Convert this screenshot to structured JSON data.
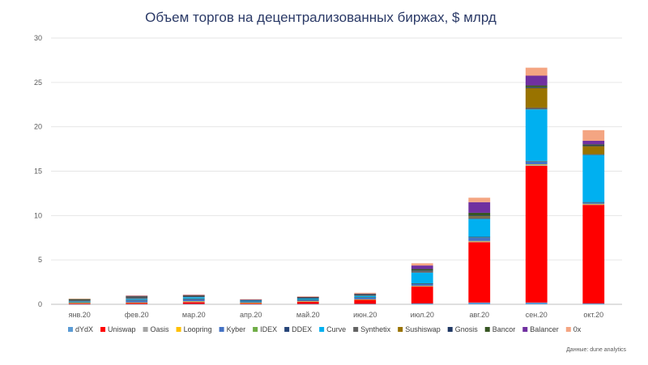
{
  "chart_data": {
    "type": "bar",
    "stacked": true,
    "title": "Объем торгов на децентрализованных биржах, $ млрд",
    "source": "Данные: dune analytics",
    "categories": [
      "янв.20",
      "фев.20",
      "мар.20",
      "апр.20",
      "май.20",
      "июн.20",
      "июл.20",
      "авг.20",
      "сен.20",
      "окт.20"
    ],
    "ylim": [
      0,
      30
    ],
    "yticks": [
      0,
      5,
      10,
      15,
      20,
      25,
      30
    ],
    "grid": true,
    "legend_position": "bottom",
    "series": [
      {
        "name": "dYdX",
        "color": "#5b9bd5",
        "values": [
          0.02,
          0.03,
          0.04,
          0.03,
          0.04,
          0.05,
          0.1,
          0.2,
          0.2,
          0.1
        ]
      },
      {
        "name": "Uniswap",
        "color": "#ff0000",
        "values": [
          0.08,
          0.12,
          0.2,
          0.1,
          0.25,
          0.45,
          1.9,
          6.8,
          15.4,
          11.1
        ]
      },
      {
        "name": "Oasis",
        "color": "#a5a5a5",
        "values": [
          0.05,
          0.05,
          0.08,
          0.04,
          0.05,
          0.05,
          0.05,
          0.1,
          0.15,
          0.1
        ]
      },
      {
        "name": "Loopring",
        "color": "#ffc000",
        "values": [
          0.01,
          0.01,
          0.02,
          0.01,
          0.01,
          0.01,
          0.02,
          0.03,
          0.03,
          0.02
        ]
      },
      {
        "name": "Kyber",
        "color": "#4472c4",
        "values": [
          0.1,
          0.25,
          0.25,
          0.12,
          0.15,
          0.2,
          0.25,
          0.4,
          0.3,
          0.15
        ]
      },
      {
        "name": "IDEX",
        "color": "#70ad47",
        "values": [
          0.02,
          0.03,
          0.03,
          0.02,
          0.02,
          0.02,
          0.03,
          0.05,
          0.05,
          0.03
        ]
      },
      {
        "name": "DDEX",
        "color": "#264478",
        "values": [
          0.03,
          0.03,
          0.03,
          0.02,
          0.02,
          0.02,
          0.02,
          0.03,
          0.03,
          0.02
        ]
      },
      {
        "name": "Curve",
        "color": "#00b0f0",
        "values": [
          0.03,
          0.1,
          0.15,
          0.08,
          0.12,
          0.15,
          1.2,
          2.0,
          5.8,
          5.3
        ]
      },
      {
        "name": "Synthetix",
        "color": "#636363",
        "values": [
          0.15,
          0.2,
          0.1,
          0.05,
          0.05,
          0.1,
          0.2,
          0.2,
          0.2,
          0.1
        ]
      },
      {
        "name": "Sushiswap",
        "color": "#997300",
        "values": [
          0,
          0,
          0,
          0,
          0,
          0,
          0,
          0.1,
          2.2,
          0.9
        ]
      },
      {
        "name": "Gnosis",
        "color": "#1f3864",
        "values": [
          0.02,
          0.02,
          0.02,
          0.01,
          0.01,
          0.02,
          0.05,
          0.1,
          0.1,
          0.1
        ]
      },
      {
        "name": "Bancor",
        "color": "#375623",
        "values": [
          0.1,
          0.1,
          0.1,
          0.04,
          0.1,
          0.1,
          0.15,
          0.3,
          0.2,
          0.1
        ]
      },
      {
        "name": "Balancer",
        "color": "#7030a0",
        "values": [
          0,
          0.01,
          0.02,
          0.01,
          0.02,
          0.03,
          0.4,
          1.2,
          1.1,
          0.4
        ]
      },
      {
        "name": "0x",
        "color": "#f4a582",
        "values": [
          0.02,
          0.05,
          0.06,
          0.05,
          0.06,
          0.1,
          0.25,
          0.5,
          0.9,
          1.2
        ]
      }
    ]
  }
}
